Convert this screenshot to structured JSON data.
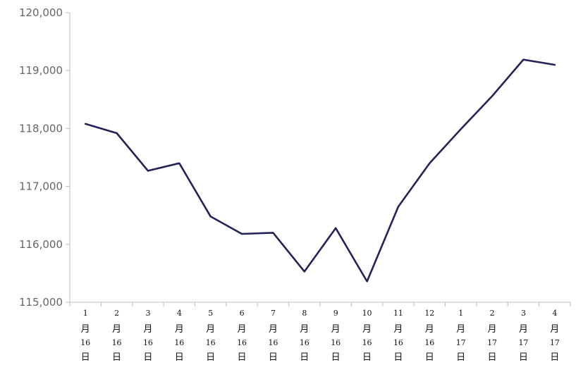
{
  "chart_data": {
    "type": "line",
    "title": "",
    "xlabel": "",
    "ylabel": "",
    "ylim": [
      115000,
      120000
    ],
    "yticks": [
      "115,000",
      "116,000",
      "117,000",
      "118,000",
      "119,000",
      "120,000"
    ],
    "ytick_values": [
      115000,
      116000,
      117000,
      118000,
      119000,
      120000
    ],
    "grid": false,
    "legend": "none",
    "line_color": "#23235a",
    "categories": [
      [
        "1",
        "月",
        "16",
        "日"
      ],
      [
        "2",
        "月",
        "16",
        "日"
      ],
      [
        "3",
        "月",
        "16",
        "日"
      ],
      [
        "4",
        "月",
        "16",
        "日"
      ],
      [
        "5",
        "月",
        "16",
        "日"
      ],
      [
        "6",
        "月",
        "16",
        "日"
      ],
      [
        "7",
        "月",
        "16",
        "日"
      ],
      [
        "8",
        "月",
        "16",
        "日"
      ],
      [
        "9",
        "月",
        "16",
        "日"
      ],
      [
        "10",
        "月",
        "16",
        "日"
      ],
      [
        "11",
        "月",
        "16",
        "日"
      ],
      [
        "12",
        "月",
        "16",
        "日"
      ],
      [
        "1",
        "月",
        "17",
        "日"
      ],
      [
        "2",
        "月",
        "17",
        "日"
      ],
      [
        "3",
        "月",
        "17",
        "日"
      ],
      [
        "4",
        "月",
        "17",
        "日"
      ]
    ],
    "series": [
      {
        "values": [
          118080,
          117920,
          117270,
          117400,
          116480,
          116180,
          116200,
          115530,
          116280,
          115360,
          116650,
          117400,
          117990,
          118560,
          119190,
          119100
        ]
      }
    ]
  }
}
